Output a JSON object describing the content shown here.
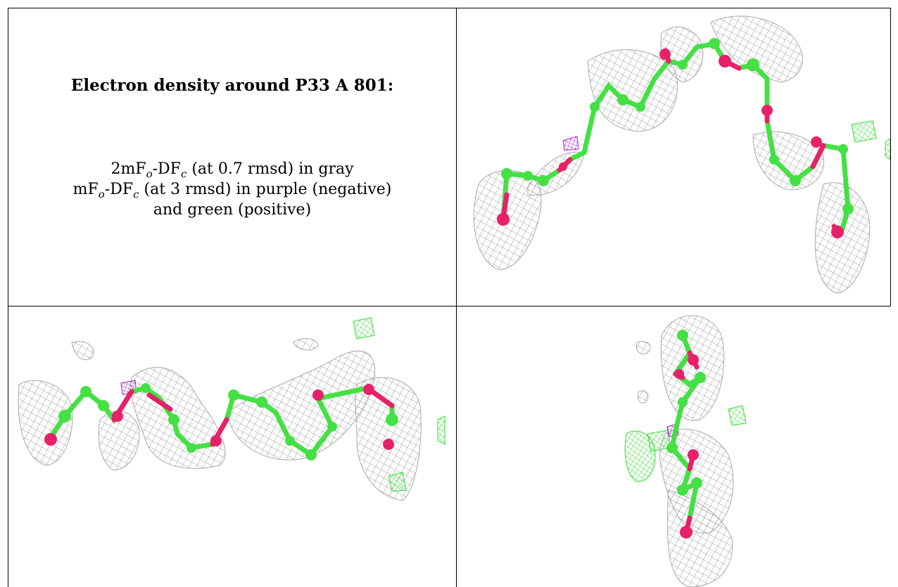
{
  "caption": {
    "title": "Electron density around P33 A 801:",
    "line1": {
      "a": "2mF",
      "o": "o",
      "b": "-DF",
      "c": "c",
      "rest": " (at 0.7 rmsd) in gray"
    },
    "line2": {
      "a": "mF",
      "o": "o",
      "b": "-DF",
      "c": "c",
      "rest": " (at 3 rmsd) in purple (negative)"
    },
    "line3": "and green (positive)"
  },
  "colors": {
    "mesh_gray": "#9c9c9c",
    "mesh_negative": "#b020c8",
    "mesh_positive": "#33dd33",
    "atom_carbon": "#44e044",
    "atom_oxygen": "#e8206a"
  },
  "panels": [
    {
      "name": "view-top-right"
    },
    {
      "name": "view-bottom-left"
    },
    {
      "name": "view-bottom-right"
    }
  ]
}
